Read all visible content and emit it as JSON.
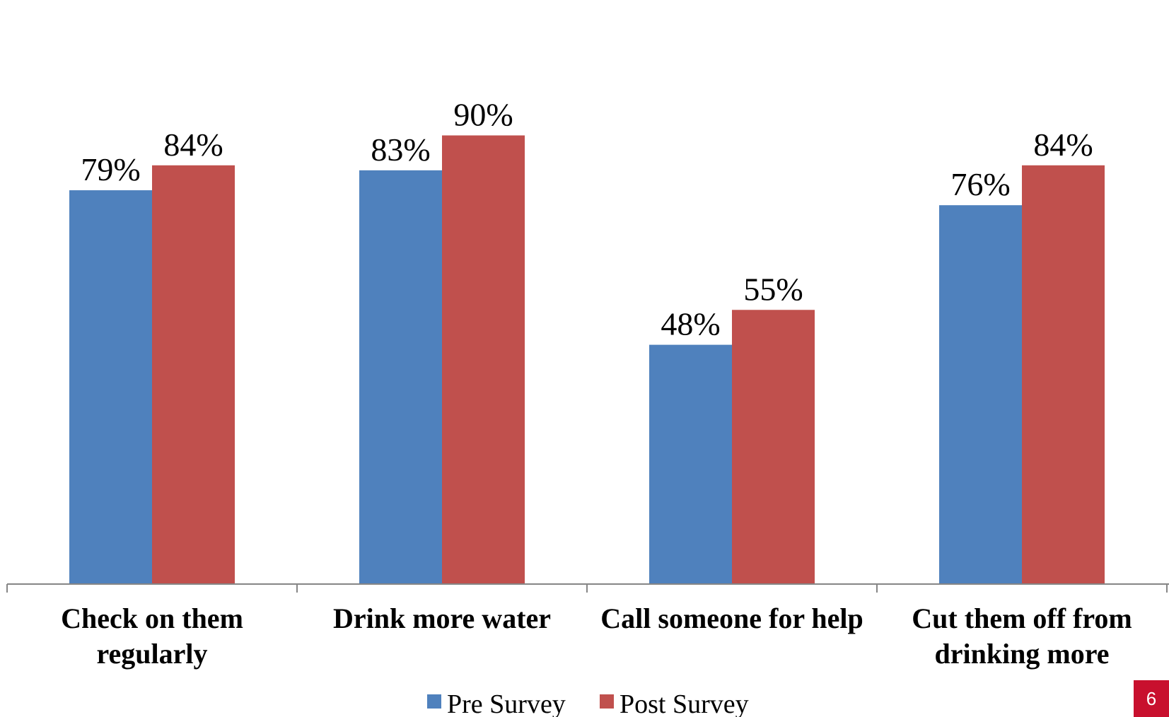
{
  "chart_data": {
    "type": "bar",
    "categories": [
      [
        "Check on them",
        "regularly"
      ],
      [
        "Drink more water"
      ],
      [
        "Call someone for help"
      ],
      [
        "Cut them off from",
        "drinking more"
      ]
    ],
    "series": [
      {
        "name": "Pre Survey",
        "values": [
          79,
          83,
          48,
          76
        ],
        "labels": [
          "79%",
          "83%",
          "48%",
          "76%"
        ],
        "color": "#4f81bd"
      },
      {
        "name": "Post Survey",
        "values": [
          84,
          90,
          55,
          84
        ],
        "labels": [
          "84%",
          "90%",
          "55%",
          "84%"
        ],
        "color": "#c0504d"
      }
    ],
    "ylim": [
      0,
      100
    ],
    "grid": false,
    "legend_position": "bottom"
  },
  "page_number": "6",
  "colors": {
    "axis": "#868686",
    "badge": "#c8102e"
  }
}
